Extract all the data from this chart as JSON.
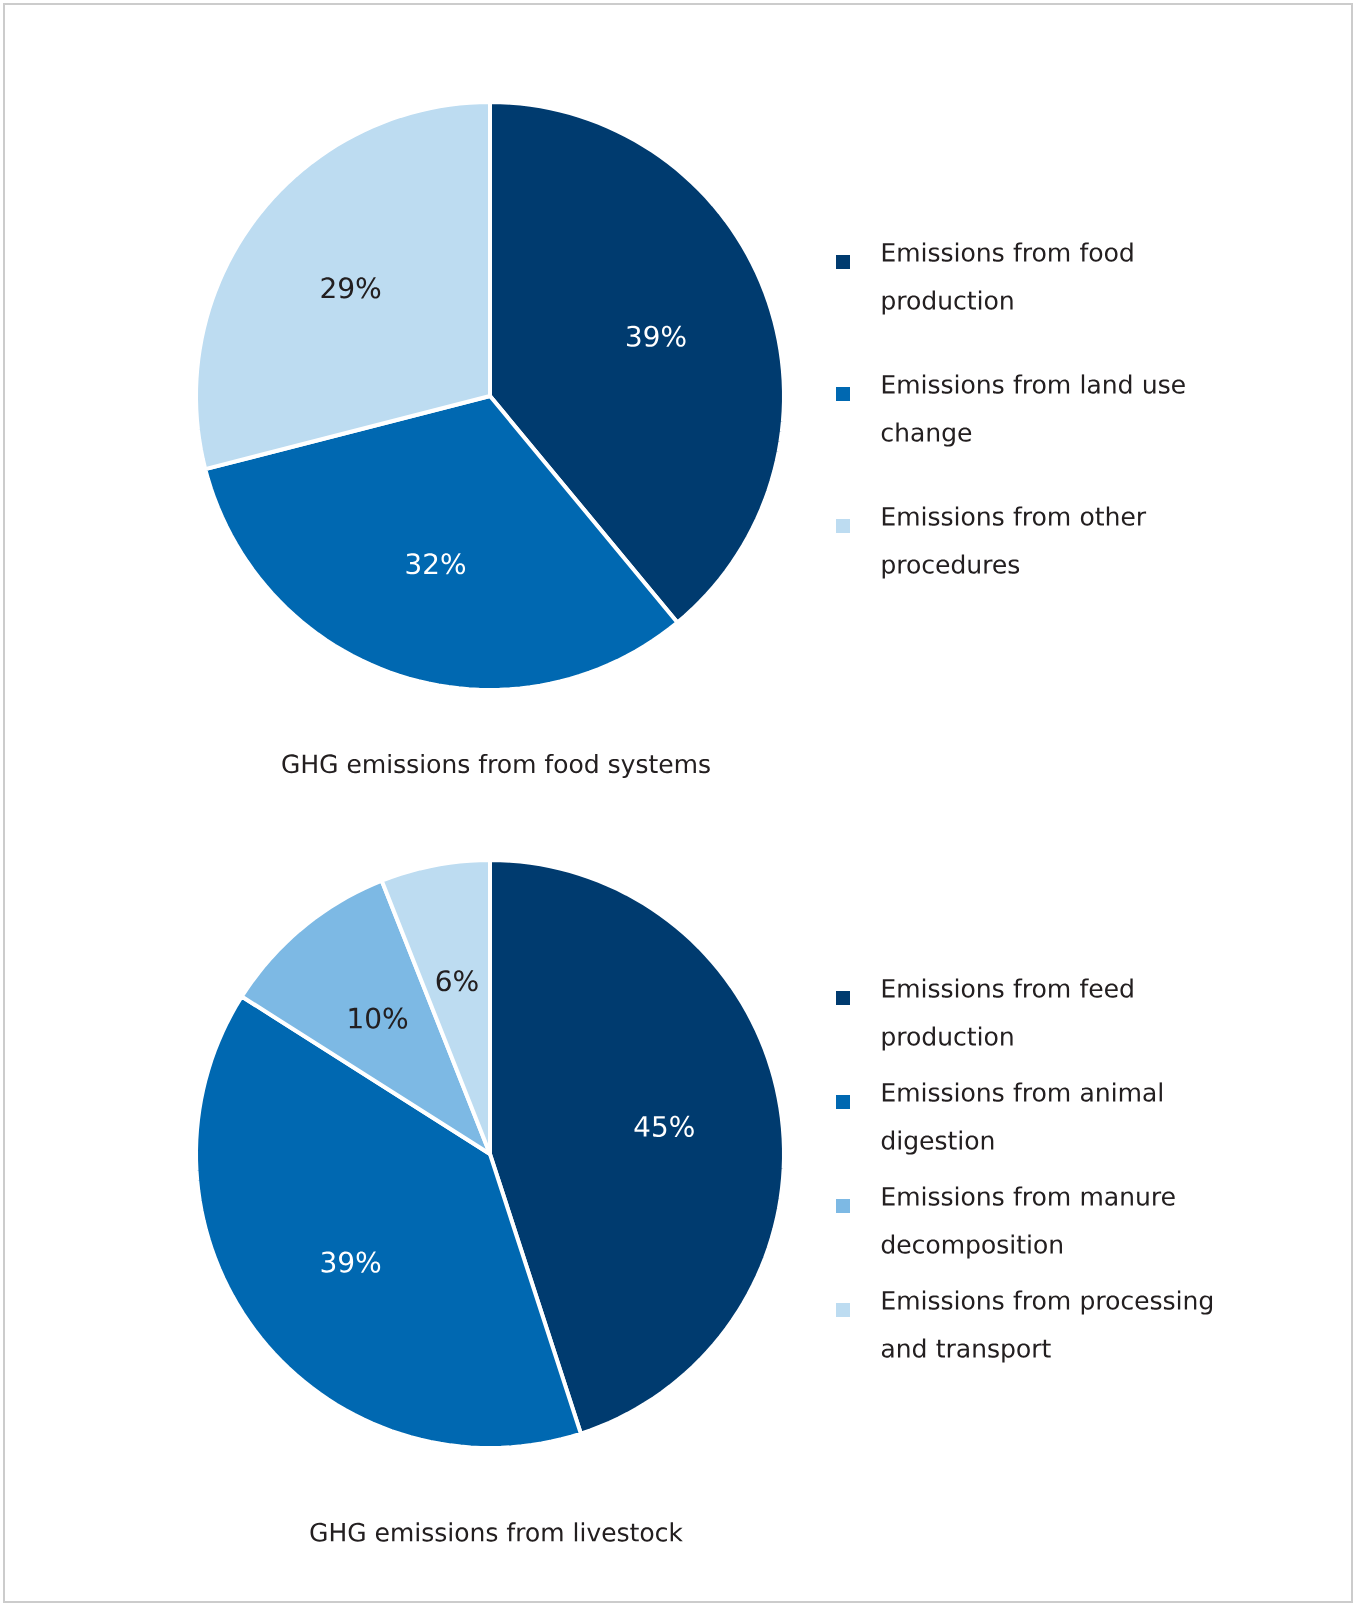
{
  "chart_data": [
    {
      "type": "pie",
      "title": "GHG emissions from food systems",
      "categories": [
        "Emissions from food production",
        "Emissions from land use change",
        "Emissions from other procedures"
      ],
      "values": [
        39,
        32,
        29
      ],
      "value_labels": [
        "39%",
        "32%",
        "29%"
      ],
      "colors": [
        "#003b6f",
        "#0068b1",
        "#bddcf1"
      ],
      "legend": "right"
    },
    {
      "type": "pie",
      "title": "GHG emissions from livestock",
      "categories": [
        "Emissions from feed production",
        "Emissions from animal digestion",
        "Emissions from manure decomposition",
        "Emissions from processing and transport"
      ],
      "values": [
        45,
        39,
        10,
        6
      ],
      "value_labels": [
        "45%",
        "39%",
        "10%",
        "6%"
      ],
      "colors": [
        "#003b6f",
        "#0068b1",
        "#7db9e4",
        "#bddcf1"
      ],
      "legend": "right"
    }
  ]
}
